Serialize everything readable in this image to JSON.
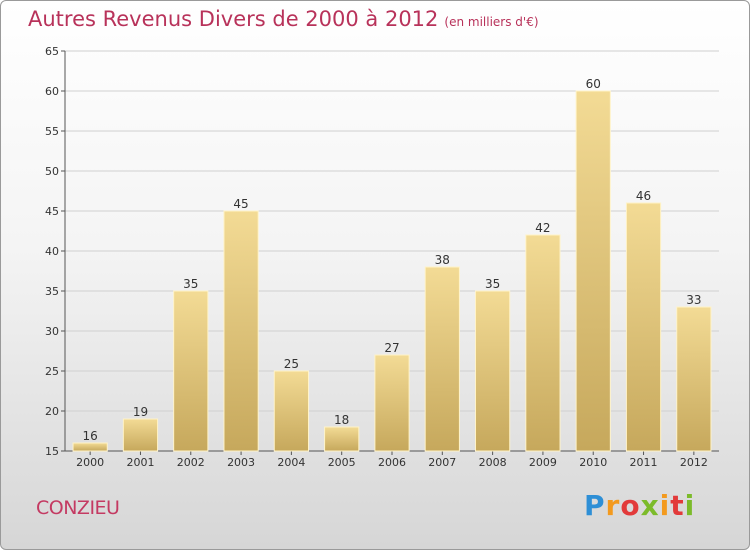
{
  "header": {
    "title": "Autres Revenus Divers de 2000 à 2012",
    "subtitle": "(en milliers d'€)"
  },
  "footer": {
    "commune": "CONZIEU",
    "logo_text": "Proxiti"
  },
  "colors": {
    "title": "#b8325a",
    "bar_top": "#f3db95",
    "bar_bottom": "#c6a85c",
    "grid": "#d0d0d0"
  },
  "chart_data": {
    "type": "bar",
    "title": "Autres Revenus Divers de 2000 à 2012",
    "subtitle": "(en milliers d'€)",
    "xlabel": "",
    "ylabel": "",
    "categories": [
      "2000",
      "2001",
      "2002",
      "2003",
      "2004",
      "2005",
      "2006",
      "2007",
      "2008",
      "2009",
      "2010",
      "2011",
      "2012"
    ],
    "values": [
      16,
      19,
      35,
      45,
      25,
      18,
      27,
      38,
      35,
      42,
      60,
      46,
      33
    ],
    "ylim": [
      15,
      65
    ],
    "yticks": [
      15,
      20,
      25,
      30,
      35,
      40,
      45,
      50,
      55,
      60,
      65
    ],
    "grid": true,
    "legend": "none"
  }
}
